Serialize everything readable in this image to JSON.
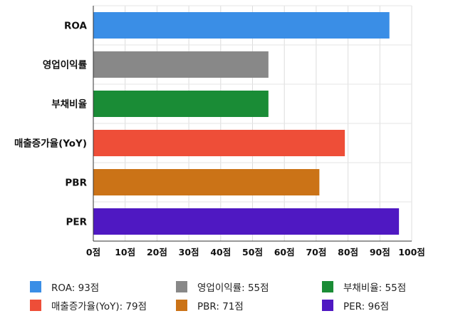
{
  "chart_data": {
    "type": "bar",
    "orientation": "horizontal",
    "categories": [
      "ROA",
      "영업이익률",
      "부채비율",
      "매출증가율(YoY)",
      "PBR",
      "PER"
    ],
    "values": [
      93,
      55,
      55,
      79,
      71,
      96
    ],
    "colors": [
      "#3A8EE6",
      "#888888",
      "#1A8C36",
      "#EE4E38",
      "#CB7317",
      "#4F18C2"
    ],
    "xlim": [
      0,
      100
    ],
    "xticks": [
      0,
      10,
      20,
      30,
      40,
      50,
      60,
      70,
      80,
      90,
      100
    ],
    "tick_suffix": "점",
    "grid": true,
    "legend_position": "bottom",
    "legend": [
      {
        "label": "ROA: 93점",
        "color": "#3A8EE6"
      },
      {
        "label": "영업이익률: 55점",
        "color": "#888888"
      },
      {
        "label": "부채비율: 55점",
        "color": "#1A8C36"
      },
      {
        "label": "매출증가율(YoY): 79점",
        "color": "#EE4E38"
      },
      {
        "label": "PBR: 71점",
        "color": "#CB7317"
      },
      {
        "label": "PER: 96점",
        "color": "#4F18C2"
      }
    ]
  }
}
